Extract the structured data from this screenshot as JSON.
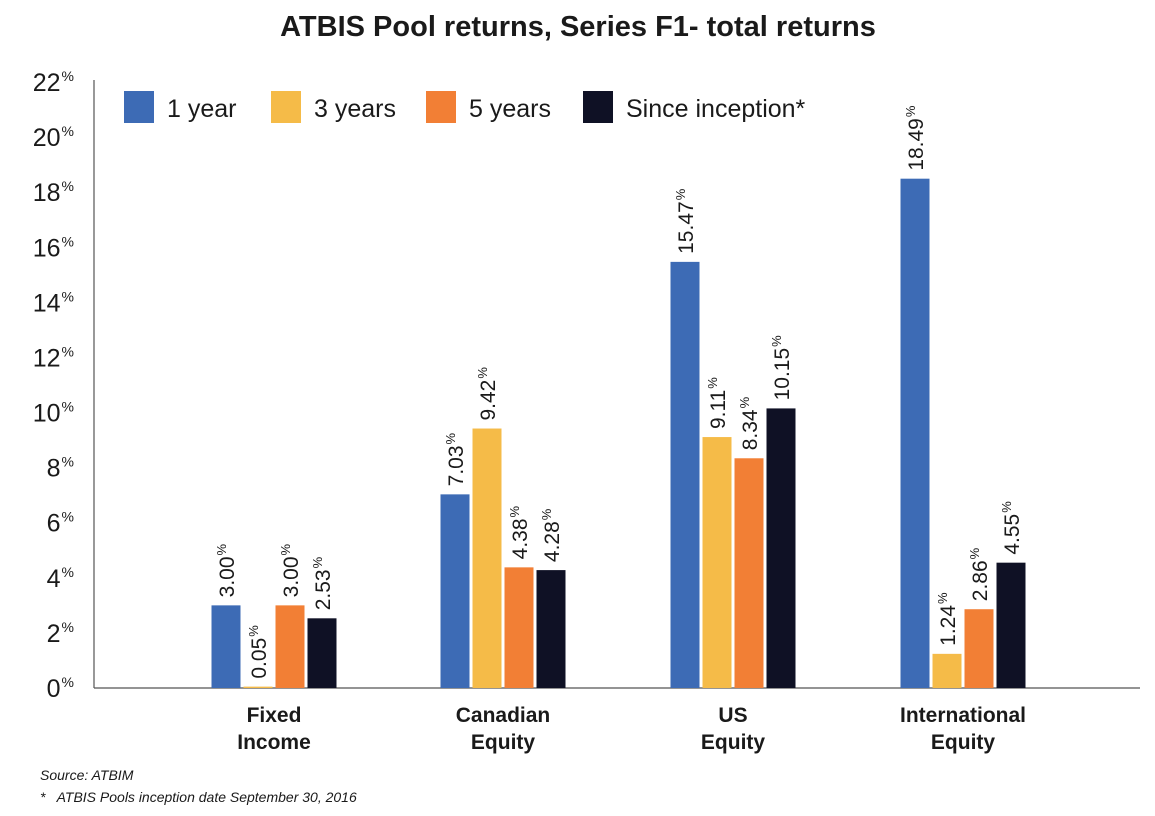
{
  "chart_data": {
    "type": "bar",
    "title": "ATBIS Pool returns, Series F1- total returns",
    "categories": [
      [
        "Fixed",
        "Income"
      ],
      [
        "Canadian",
        "Equity"
      ],
      [
        "US",
        "Equity"
      ],
      [
        "International",
        "Equity"
      ]
    ],
    "series": [
      {
        "name": "1 year",
        "color": "#3d6bb5",
        "values": [
          3.0,
          7.03,
          15.47,
          18.49
        ],
        "labels": [
          "3.00",
          "7.03",
          "15.47",
          "18.49"
        ]
      },
      {
        "name": "3 years",
        "color": "#f5bb48",
        "values": [
          0.05,
          9.42,
          9.11,
          1.24
        ],
        "labels": [
          "0.05",
          "9.42",
          "9.11",
          "1.24"
        ]
      },
      {
        "name": "5 years",
        "color": "#f27f35",
        "values": [
          3.0,
          4.38,
          8.34,
          2.86
        ],
        "labels": [
          "3.00",
          "4.38",
          "8.34",
          "2.86"
        ]
      },
      {
        "name": "Since inception*",
        "color": "#0f1125",
        "values": [
          2.53,
          4.28,
          10.15,
          4.55
        ],
        "labels": [
          "2.53",
          "4.28",
          "10.15",
          "4.55"
        ]
      }
    ],
    "ylim": [
      0,
      22
    ],
    "yticks": [
      0,
      2,
      4,
      6,
      8,
      10,
      12,
      14,
      16,
      18,
      20,
      22
    ],
    "ytick_suffix": "%",
    "value_suffix": "%",
    "legend_position": "top-left",
    "grid": false
  },
  "footer": {
    "source": "Source: ATBIM",
    "note": "*   ATBIS Pools inception date September 30, 2016"
  }
}
